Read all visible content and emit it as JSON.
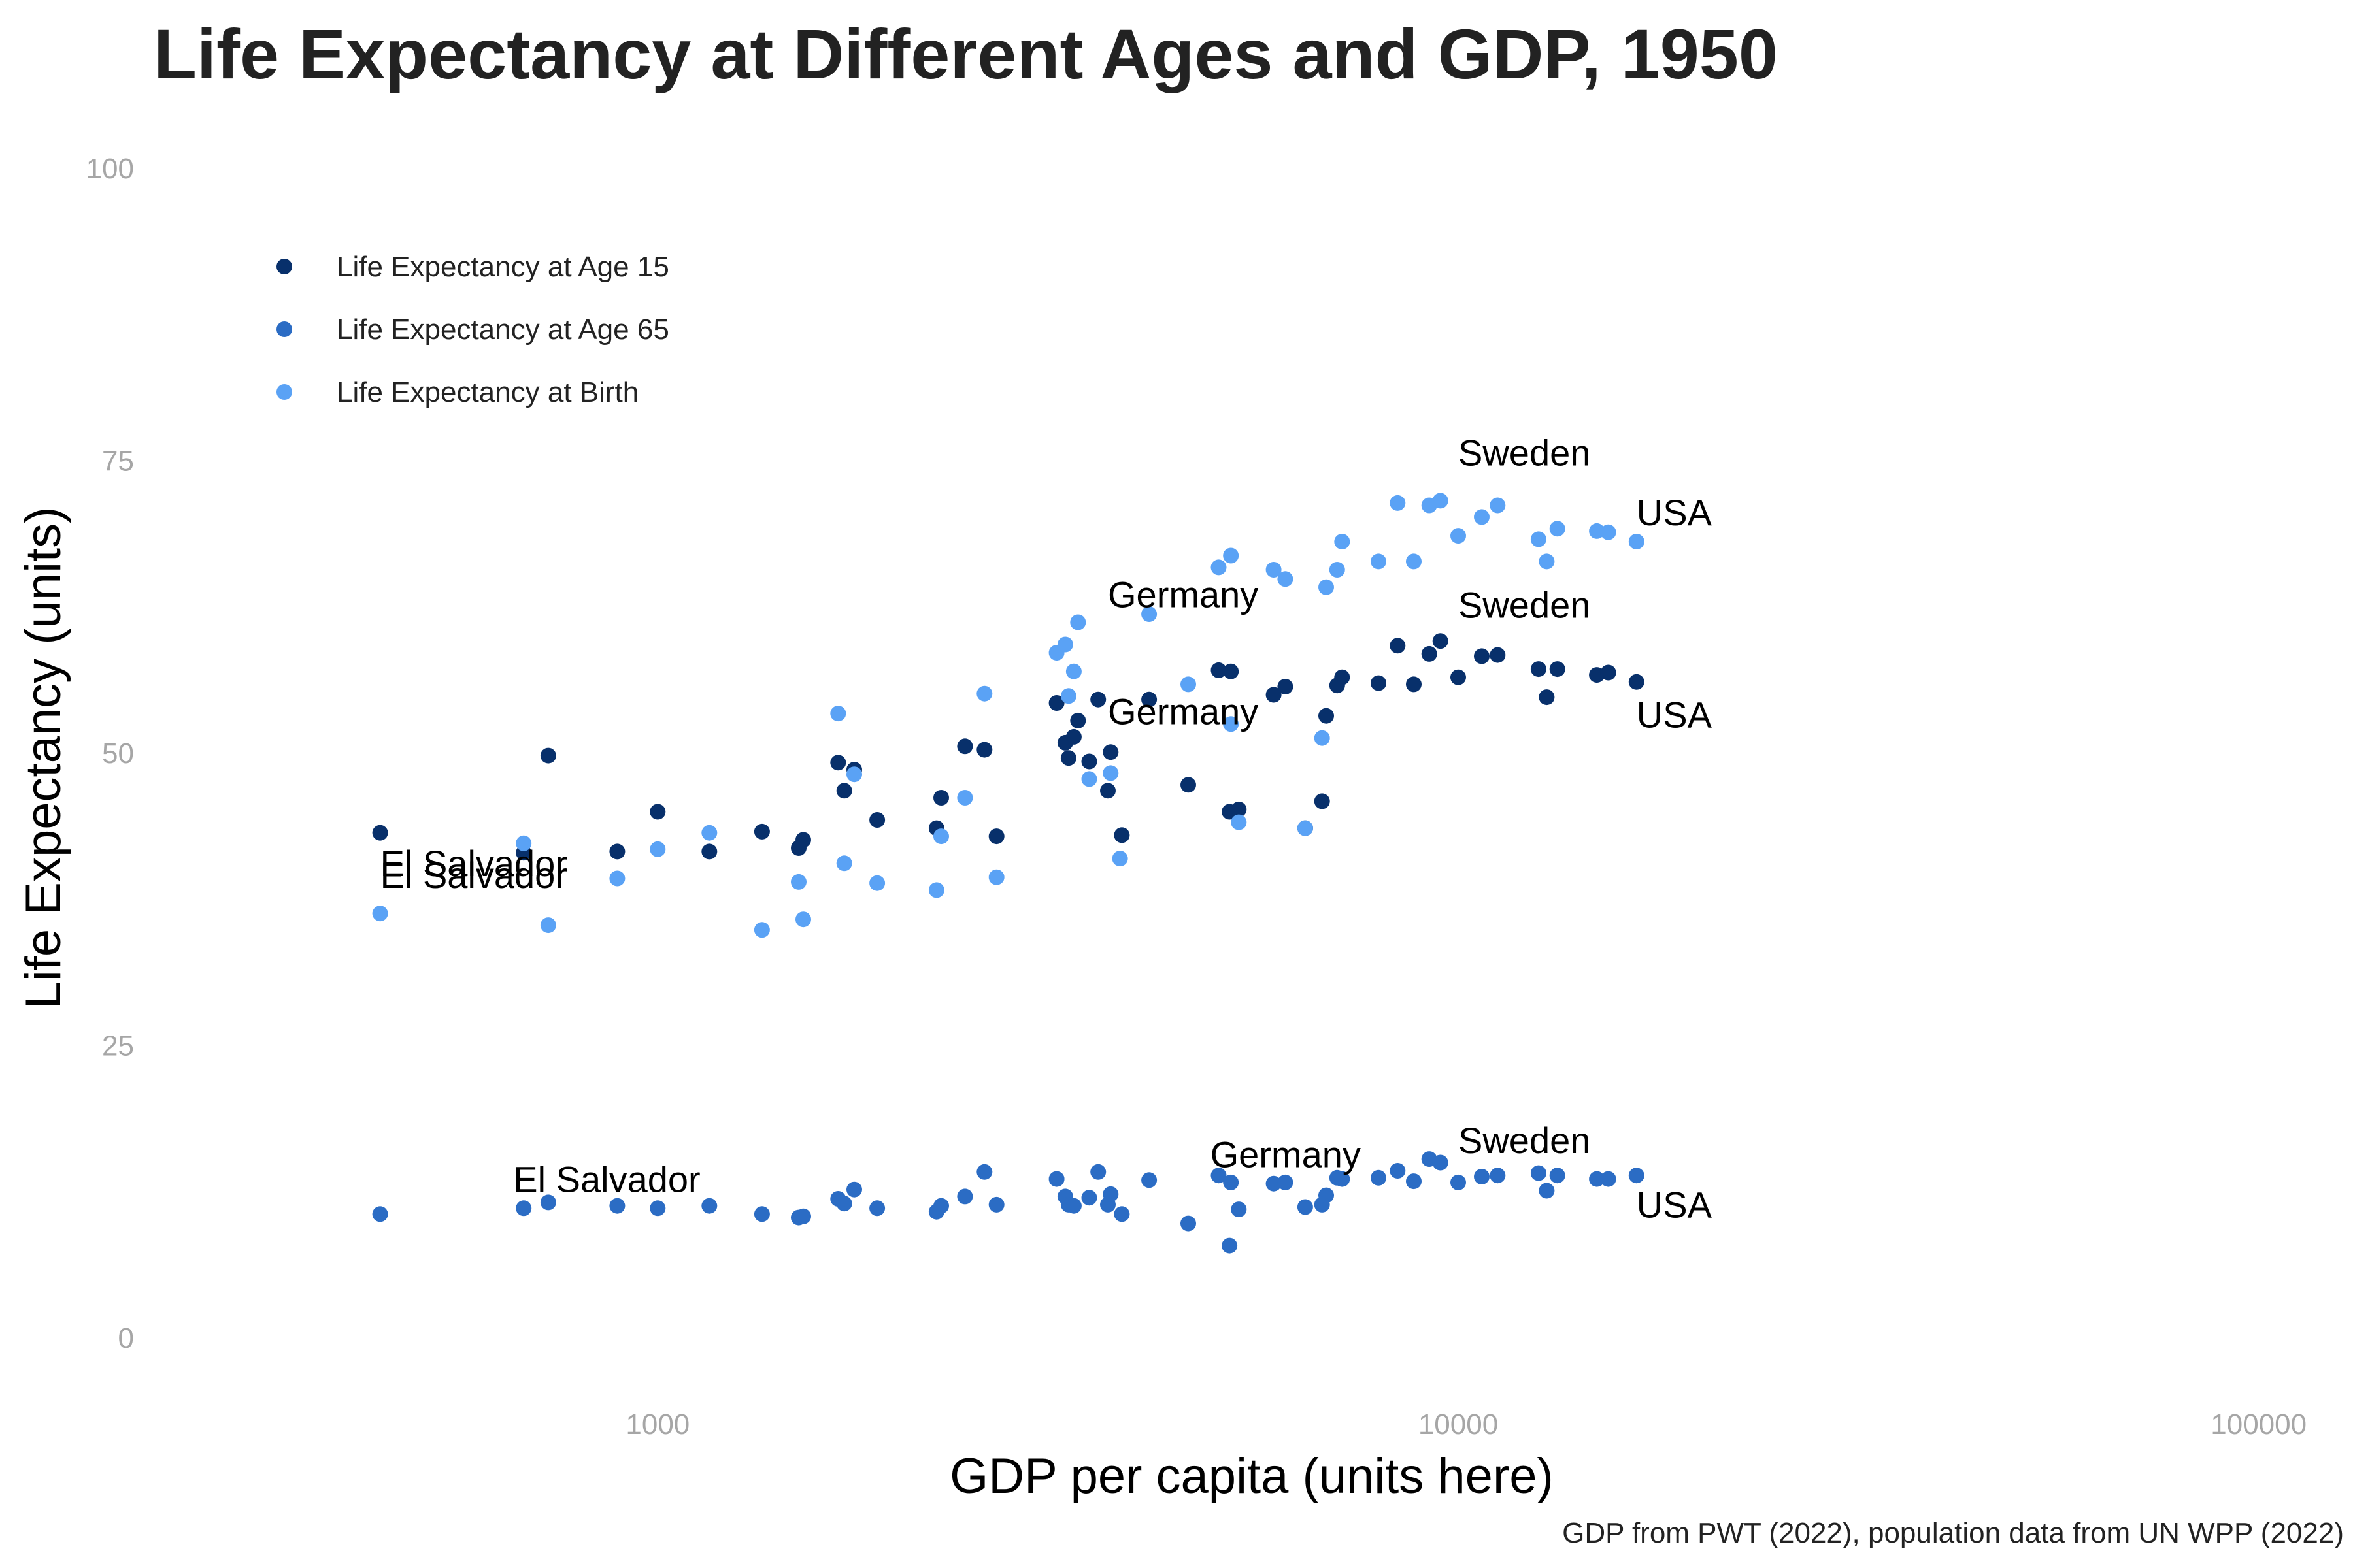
{
  "chart_data": {
    "type": "scatter",
    "title": "Life Expectancy at Different Ages and GDP, 1950",
    "caption": "GDP from PWT (2022), population data from UN WPP (2022)",
    "xlabel": "GDP per capita (units here)",
    "ylabel": "Life Expectancy (units)",
    "x_scale": "log",
    "xlim": [
      265,
      115000
    ],
    "ylim": [
      0,
      100
    ],
    "x_ticks": [
      {
        "v": 1000,
        "label": "1000"
      },
      {
        "v": 10000,
        "label": "10000"
      },
      {
        "v": 100000,
        "label": "100000"
      }
    ],
    "y_ticks": [
      {
        "v": 0,
        "label": "0"
      },
      {
        "v": 25,
        "label": "25"
      },
      {
        "v": 50,
        "label": "50"
      },
      {
        "v": 75,
        "label": "75"
      },
      {
        "v": 100,
        "label": "100"
      }
    ],
    "grid": false,
    "legend_position": "top-left",
    "series": [
      {
        "name": "Life Expectancy at Age 15",
        "color": "#08306b",
        "points": [
          [
            450,
            43.2
          ],
          [
            680,
            41.5
          ],
          [
            730,
            49.8
          ],
          [
            890,
            41.6
          ],
          [
            1000,
            45
          ],
          [
            1160,
            41.6
          ],
          [
            1350,
            43.3
          ],
          [
            1520,
            42.6
          ],
          [
            1500,
            41.9
          ],
          [
            1680,
            49.2
          ],
          [
            1710,
            46.8
          ],
          [
            1760,
            48.6
          ],
          [
            1880,
            44.3
          ],
          [
            2230,
            43.6
          ],
          [
            2260,
            46.2
          ],
          [
            2420,
            50.6
          ],
          [
            2560,
            50.3
          ],
          [
            2650,
            42.9
          ],
          [
            3150,
            54.3
          ],
          [
            3230,
            50.9
          ],
          [
            3260,
            49.6
          ],
          [
            3310,
            51.4
          ],
          [
            3350,
            52.8
          ],
          [
            3460,
            49.3
          ],
          [
            3550,
            54.6
          ],
          [
            3650,
            46.8
          ],
          [
            3680,
            50.1
          ],
          [
            3800,
            43
          ],
          [
            4110,
            54.6
          ],
          [
            4600,
            47.3
          ],
          [
            5020,
            57.1
          ],
          [
            5200,
            57
          ],
          [
            5180,
            45
          ],
          [
            5320,
            45.2
          ],
          [
            5880,
            55
          ],
          [
            6080,
            55.7
          ],
          [
            6440,
            43.6
          ],
          [
            6760,
            45.9
          ],
          [
            6840,
            53.2
          ],
          [
            7060,
            55.8
          ],
          [
            7160,
            56.5
          ],
          [
            7950,
            56
          ],
          [
            8400,
            59.2
          ],
          [
            8800,
            55.9
          ],
          [
            9200,
            58.5
          ],
          [
            9500,
            59.6
          ],
          [
            10000,
            56.5
          ],
          [
            10700,
            58.3
          ],
          [
            11200,
            58.4
          ],
          [
            12600,
            57.2
          ],
          [
            12900,
            54.8
          ],
          [
            13300,
            57.2
          ],
          [
            14900,
            56.7
          ],
          [
            15400,
            56.9
          ],
          [
            16700,
            56.1
          ]
        ]
      },
      {
        "name": "Life Expectancy at Age 65",
        "color": "#2b6cc4",
        "points": [
          [
            450,
            10.6
          ],
          [
            680,
            11.1
          ],
          [
            730,
            11.6
          ],
          [
            890,
            11.3
          ],
          [
            1000,
            11.1
          ],
          [
            1160,
            11.3
          ],
          [
            1350,
            10.6
          ],
          [
            1500,
            10.3
          ],
          [
            1520,
            10.4
          ],
          [
            1680,
            11.9
          ],
          [
            1710,
            11.5
          ],
          [
            1760,
            12.7
          ],
          [
            1880,
            11.1
          ],
          [
            2230,
            10.8
          ],
          [
            2260,
            11.3
          ],
          [
            2420,
            12.1
          ],
          [
            2560,
            14.2
          ],
          [
            2650,
            11.4
          ],
          [
            3150,
            13.6
          ],
          [
            3230,
            12.1
          ],
          [
            3260,
            11.4
          ],
          [
            3310,
            11.3
          ],
          [
            3460,
            12
          ],
          [
            3550,
            14.2
          ],
          [
            3650,
            11.4
          ],
          [
            3680,
            12.3
          ],
          [
            3800,
            10.6
          ],
          [
            4110,
            13.5
          ],
          [
            4600,
            9.8
          ],
          [
            5020,
            13.9
          ],
          [
            5180,
            7.9
          ],
          [
            5200,
            13.3
          ],
          [
            5320,
            11
          ],
          [
            5880,
            13.2
          ],
          [
            6080,
            13.3
          ],
          [
            6440,
            11.2
          ],
          [
            6760,
            11.4
          ],
          [
            6840,
            12.2
          ],
          [
            7060,
            13.7
          ],
          [
            7160,
            13.6
          ],
          [
            7950,
            13.7
          ],
          [
            8400,
            14.3
          ],
          [
            8800,
            13.4
          ],
          [
            9200,
            15.3
          ],
          [
            9500,
            15
          ],
          [
            10000,
            13.3
          ],
          [
            10700,
            13.8
          ],
          [
            11200,
            13.9
          ],
          [
            12600,
            14.1
          ],
          [
            12900,
            12.6
          ],
          [
            13300,
            13.9
          ],
          [
            14900,
            13.6
          ],
          [
            15400,
            13.6
          ],
          [
            16700,
            13.9
          ]
        ]
      },
      {
        "name": "Life Expectancy at Birth",
        "color": "#5aa2f5",
        "points": [
          [
            450,
            36.3
          ],
          [
            680,
            42.3
          ],
          [
            730,
            35.3
          ],
          [
            890,
            39.3
          ],
          [
            1000,
            41.8
          ],
          [
            1160,
            43.2
          ],
          [
            1350,
            34.9
          ],
          [
            1500,
            39
          ],
          [
            1520,
            35.8
          ],
          [
            1680,
            53.4
          ],
          [
            1710,
            40.6
          ],
          [
            1760,
            48.2
          ],
          [
            1880,
            38.9
          ],
          [
            2230,
            38.3
          ],
          [
            2260,
            42.9
          ],
          [
            2420,
            46.2
          ],
          [
            2560,
            55.1
          ],
          [
            2650,
            39.4
          ],
          [
            3150,
            58.6
          ],
          [
            3230,
            59.3
          ],
          [
            3260,
            54.9
          ],
          [
            3310,
            57
          ],
          [
            3350,
            61.2
          ],
          [
            3460,
            47.8
          ],
          [
            3680,
            48.3
          ],
          [
            3780,
            41
          ],
          [
            4110,
            61.9
          ],
          [
            4600,
            55.9
          ],
          [
            5020,
            65.9
          ],
          [
            5200,
            52.5
          ],
          [
            5200,
            66.9
          ],
          [
            5320,
            44.1
          ],
          [
            5880,
            65.7
          ],
          [
            6080,
            64.9
          ],
          [
            6440,
            43.6
          ],
          [
            6760,
            51.3
          ],
          [
            6840,
            64.2
          ],
          [
            7060,
            65.7
          ],
          [
            7160,
            68.1
          ],
          [
            7950,
            66.4
          ],
          [
            8400,
            71.4
          ],
          [
            8800,
            66.4
          ],
          [
            9200,
            71.2
          ],
          [
            9500,
            71.6
          ],
          [
            10000,
            68.6
          ],
          [
            10700,
            70.2
          ],
          [
            11200,
            71.2
          ],
          [
            12600,
            68.3
          ],
          [
            12900,
            66.4
          ],
          [
            13300,
            69.2
          ],
          [
            14900,
            69
          ],
          [
            15400,
            68.9
          ],
          [
            16700,
            68.1
          ]
        ]
      }
    ],
    "annotations": [
      {
        "text": "El Salvador",
        "x": 450,
        "y": 39.5,
        "anchor": "start"
      },
      {
        "text": "El Salvador",
        "x": 450,
        "y": 38.5,
        "anchor": "start"
      },
      {
        "text": "El Salvador",
        "x": 660,
        "y": 12.5,
        "anchor": "start"
      },
      {
        "text": "Germany",
        "x": 3650,
        "y": 62.5,
        "anchor": "start"
      },
      {
        "text": "Germany",
        "x": 3650,
        "y": 52.5,
        "anchor": "start"
      },
      {
        "text": "Germany",
        "x": 4900,
        "y": 14.6,
        "anchor": "start"
      },
      {
        "text": "Sweden",
        "x": 10000,
        "y": 74.6,
        "anchor": "start"
      },
      {
        "text": "Sweden",
        "x": 10000,
        "y": 61.6,
        "anchor": "start"
      },
      {
        "text": "Sweden",
        "x": 10000,
        "y": 15.8,
        "anchor": "start"
      },
      {
        "text": "USA",
        "x": 16700,
        "y": 69.5,
        "anchor": "start"
      },
      {
        "text": "USA",
        "x": 16700,
        "y": 52.2,
        "anchor": "start"
      },
      {
        "text": "USA",
        "x": 16700,
        "y": 10.3,
        "anchor": "start"
      }
    ]
  }
}
